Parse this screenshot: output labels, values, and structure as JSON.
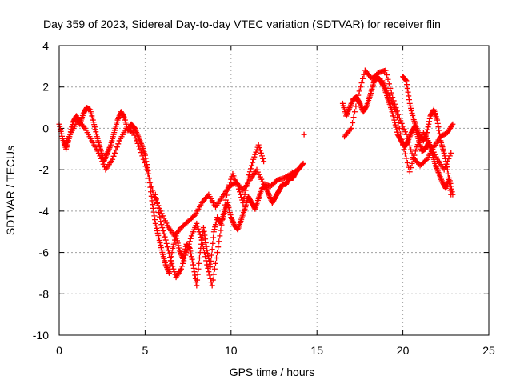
{
  "chart_data": {
    "type": "scatter",
    "title": "Day 359 of 2023, Sidereal Day-to-day VTEC variation (SDTVAR) for receiver flin",
    "xlabel": "GPS time / hours",
    "ylabel": "SDTVAR / TECUs",
    "xlim": [
      0,
      25
    ],
    "ylim": [
      -10,
      4
    ],
    "xticks": [
      0,
      5,
      10,
      15,
      20,
      25
    ],
    "yticks": [
      -10,
      -8,
      -6,
      -4,
      -2,
      0,
      2,
      4
    ],
    "xtick_labels": [
      "0",
      "5",
      "10",
      "15",
      "20",
      "25"
    ],
    "ytick_labels": [
      "-10",
      "-8",
      "-6",
      "-4",
      "-2",
      "0",
      "2",
      "4"
    ],
    "grid": true,
    "marker": "+",
    "series": [
      {
        "name": "SDTVAR",
        "color": "#ff0000",
        "tracks": [
          {
            "x": [
              0.0,
              0.2,
              0.4,
              0.6,
              0.8,
              1.0,
              1.2,
              1.4,
              1.6,
              1.8,
              2.0,
              2.2,
              2.4,
              2.6,
              2.8,
              3.0,
              3.2,
              3.4,
              3.6,
              3.8,
              4.0,
              4.2,
              4.4,
              4.6,
              4.8,
              5.0,
              5.2,
              5.4,
              5.6,
              5.8,
              6.0,
              6.2,
              6.4,
              6.6,
              6.8,
              7.0,
              7.2,
              7.4,
              7.6,
              7.8,
              8.0,
              8.2,
              8.4,
              8.6,
              8.8,
              9.0,
              9.2,
              9.4,
              9.6,
              9.8,
              10.0,
              10.2,
              10.4,
              10.6,
              10.8,
              11.0,
              11.2,
              11.4,
              11.6,
              11.8,
              12.0,
              12.2,
              12.4,
              12.6,
              12.8,
              13.0,
              13.2,
              13.4,
              13.6,
              13.8,
              14.0,
              14.2
            ],
            "y": [
              0.2,
              -0.5,
              -1.0,
              -0.4,
              0.3,
              0.6,
              0.2,
              0.7,
              1.0,
              0.9,
              0.3,
              -0.4,
              -1.0,
              -1.6,
              -1.2,
              -0.8,
              -0.2,
              0.4,
              0.8,
              0.5,
              -0.1,
              0.2,
              0.0,
              -0.4,
              -0.8,
              -1.3,
              -2.2,
              -3.5,
              -4.6,
              -5.3,
              -6.0,
              -6.6,
              -7.0,
              -5.8,
              -5.2,
              -5.9,
              -6.3,
              -5.6,
              -5.8,
              -6.6,
              -7.6,
              -6.0,
              -4.8,
              -5.9,
              -6.7,
              -5.0,
              -4.3,
              -4.6,
              -4.1,
              -3.6,
              -4.3,
              -4.7,
              -4.9,
              -4.4,
              -3.9,
              -3.3,
              -3.6,
              -3.9,
              -3.4,
              -2.9,
              -2.8,
              -3.2,
              -3.6,
              -3.3,
              -3.0,
              -2.7,
              -2.7,
              -2.4,
              -2.4,
              -2.1,
              -1.9,
              -1.7
            ]
          },
          {
            "x": [
              0.3,
              0.7,
              1.1,
              1.5,
              1.9,
              2.3,
              2.7,
              3.1,
              3.5,
              3.9,
              4.3,
              4.7,
              5.1,
              5.5,
              5.9,
              6.3,
              6.7,
              7.1,
              7.5,
              7.9,
              8.3,
              8.7,
              9.1,
              9.5,
              9.9,
              10.3,
              10.7,
              11.1,
              11.5,
              11.9,
              12.3,
              12.7,
              13.1,
              13.5,
              13.9
            ],
            "y": [
              -0.8,
              -0.2,
              0.4,
              0.0,
              -0.6,
              -1.2,
              -2.0,
              -1.5,
              -0.6,
              0.0,
              -0.2,
              -1.0,
              -2.0,
              -3.2,
              -4.0,
              -4.7,
              -5.2,
              -4.8,
              -4.5,
              -4.2,
              -3.6,
              -3.2,
              -3.8,
              -3.3,
              -2.8,
              -2.6,
              -3.0,
              -2.5,
              -2.0,
              -2.7,
              -2.8,
              -2.5,
              -2.4,
              -2.2,
              -2.0
            ]
          },
          {
            "x": [
              5.6,
              5.9,
              6.2,
              6.5,
              6.8,
              7.1,
              7.4,
              7.7,
              8.0,
              8.3,
              8.6,
              8.9,
              9.2,
              9.5,
              9.8,
              10.1,
              10.4,
              10.7,
              11.0,
              11.3,
              11.6,
              11.9
            ],
            "y": [
              -3.2,
              -4.5,
              -5.4,
              -6.4,
              -7.2,
              -6.8,
              -6.0,
              -5.2,
              -4.6,
              -5.4,
              -6.6,
              -7.6,
              -6.0,
              -4.4,
              -3.0,
              -2.2,
              -2.8,
              -3.6,
              -2.4,
              -1.5,
              -0.8,
              -1.6
            ]
          },
          {
            "x": [
              14.25
            ],
            "y": [
              -0.3
            ]
          },
          {
            "x": [
              16.5,
              16.7,
              16.9,
              17.1,
              17.3,
              17.5,
              17.7,
              17.9,
              18.1,
              18.3,
              18.5,
              18.7,
              18.9,
              19.1,
              19.3,
              19.5,
              19.7,
              19.9,
              20.1,
              20.3,
              20.5,
              20.7,
              20.9,
              21.1,
              21.3,
              21.5,
              21.7,
              21.9,
              22.1,
              22.3,
              22.5,
              22.7,
              22.9
            ],
            "y": [
              1.2,
              0.6,
              1.0,
              1.4,
              1.5,
              1.2,
              0.8,
              1.1,
              1.6,
              2.2,
              2.5,
              2.3,
              2.0,
              1.5,
              1.0,
              0.4,
              -0.3,
              -0.6,
              -0.9,
              -0.6,
              -0.2,
              0.1,
              -0.5,
              -1.1,
              -1.0,
              -0.7,
              -1.2,
              -1.8,
              -2.2,
              -2.6,
              -2.9,
              -2.4,
              -3.2
            ]
          },
          {
            "x": [
              16.6,
              17.0,
              17.4,
              17.8,
              18.2,
              18.6,
              19.0,
              19.4,
              19.8,
              20.2,
              20.6,
              21.0,
              21.4,
              21.8,
              22.2,
              22.6,
              22.9
            ],
            "y": [
              -0.4,
              0.0,
              1.6,
              2.8,
              2.4,
              2.7,
              2.8,
              1.5,
              0.5,
              -0.3,
              -1.4,
              -1.8,
              -1.5,
              -0.9,
              -0.4,
              -0.2,
              0.2
            ]
          },
          {
            "x": [
              18.8,
              19.2,
              19.6,
              20.0,
              20.4,
              20.8,
              21.2,
              21.6,
              22.0,
              22.4,
              22.8
            ],
            "y": [
              2.3,
              1.6,
              0.8,
              -0.8,
              -2.1,
              -0.9,
              -0.2,
              -0.8,
              -1.5,
              -2.0,
              -1.2
            ]
          },
          {
            "x": [
              20.0,
              20.2,
              20.4,
              20.6,
              20.8,
              21.0,
              21.2,
              21.4,
              21.6,
              21.8,
              22.0,
              22.2,
              22.4,
              22.6,
              22.8
            ],
            "y": [
              2.5,
              2.3,
              1.2,
              0.5,
              0.0,
              -0.4,
              -0.6,
              -0.2,
              0.6,
              0.9,
              0.4,
              -0.6,
              -1.2,
              -2.0,
              -3.2
            ]
          }
        ]
      }
    ]
  }
}
